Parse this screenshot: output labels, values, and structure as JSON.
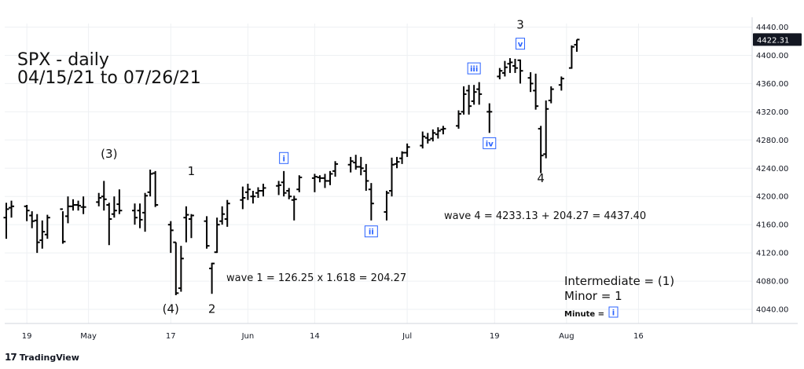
{
  "chart_data": {
    "type": "ohlc",
    "title": "SPX - daily",
    "subtitle": "04/15/21 to 07/26/21",
    "ylim": [
      4020,
      4445
    ],
    "yticks": [
      4040,
      4080,
      4120,
      4160,
      4200,
      4240,
      4280,
      4320,
      4360,
      4400,
      4440
    ],
    "ytick_labels": [
      "4040.00",
      "4080.00",
      "4120.00",
      "4160.00",
      "4200.00",
      "4240.00",
      "4280.00",
      "4320.00",
      "4360.00",
      "4400.00",
      "4440.00"
    ],
    "last_price": "4422.31",
    "xtick_labels": [
      "19",
      "May",
      "17",
      "Jun",
      "14",
      "Jul",
      "19",
      "Aug",
      "16"
    ],
    "xtick_days": [
      4,
      16,
      32,
      47,
      60,
      78,
      95,
      109,
      123
    ],
    "grid": true,
    "bars": [
      {
        "d": 0,
        "o": 4170,
        "h": 4191,
        "l": 4140,
        "c": 4182
      },
      {
        "d": 1,
        "o": 4184,
        "h": 4194,
        "l": 4170,
        "c": 4186
      },
      {
        "d": 4,
        "o": 4186,
        "h": 4188,
        "l": 4165,
        "c": 4180
      },
      {
        "d": 5,
        "o": 4173,
        "h": 4179,
        "l": 4155,
        "c": 4165
      },
      {
        "d": 6,
        "o": 4166,
        "h": 4175,
        "l": 4120,
        "c": 4135
      },
      {
        "d": 7,
        "o": 4138,
        "h": 4166,
        "l": 4126,
        "c": 4150
      },
      {
        "d": 8,
        "o": 4146,
        "h": 4174,
        "l": 4140,
        "c": 4170
      },
      {
        "d": 11,
        "o": 4182,
        "h": 4179,
        "l": 4133,
        "c": 4136
      },
      {
        "d": 12,
        "o": 4172,
        "h": 4200,
        "l": 4162,
        "c": 4186
      },
      {
        "d": 13,
        "o": 4186,
        "h": 4196,
        "l": 4180,
        "c": 4188
      },
      {
        "d": 14,
        "o": 4188,
        "h": 4194,
        "l": 4180,
        "c": 4187
      },
      {
        "d": 15,
        "o": 4185,
        "h": 4200,
        "l": 4175,
        "c": 4185
      },
      {
        "d": 18,
        "o": 4192,
        "h": 4205,
        "l": 4186,
        "c": 4198
      },
      {
        "d": 19,
        "o": 4200,
        "h": 4222,
        "l": 4180,
        "c": 4196
      },
      {
        "d": 20,
        "o": 4188,
        "h": 4191,
        "l": 4131,
        "c": 4168
      },
      {
        "d": 21,
        "o": 4175,
        "h": 4200,
        "l": 4170,
        "c": 4180
      },
      {
        "d": 22,
        "o": 4189,
        "h": 4210,
        "l": 4175,
        "c": 4180
      },
      {
        "d": 25,
        "o": 4180,
        "h": 4190,
        "l": 4160,
        "c": 4170
      },
      {
        "d": 26,
        "o": 4180,
        "h": 4190,
        "l": 4155,
        "c": 4167
      },
      {
        "d": 27,
        "o": 4177,
        "h": 4205,
        "l": 4150,
        "c": 4201
      },
      {
        "d": 28,
        "o": 4206,
        "h": 4238,
        "l": 4200,
        "c": 4232
      },
      {
        "d": 29,
        "o": 4233,
        "h": 4236,
        "l": 4185,
        "c": 4188
      },
      {
        "d": 32,
        "o": 4160,
        "h": 4165,
        "l": 4120,
        "c": 4152
      },
      {
        "d": 33,
        "o": 4135,
        "h": 4135,
        "l": 4060,
        "c": 4063
      },
      {
        "d": 34,
        "o": 4070,
        "h": 4130,
        "l": 4065,
        "c": 4112
      },
      {
        "d": 35,
        "o": 4170,
        "h": 4186,
        "l": 4135,
        "c": 4174
      },
      {
        "d": 36,
        "o": 4168,
        "h": 4175,
        "l": 4141,
        "c": 4173
      },
      {
        "d": 39,
        "o": 4165,
        "h": 4172,
        "l": 4126,
        "c": 4130
      },
      {
        "d": 40,
        "o": 4098,
        "h": 4106,
        "l": 4062,
        "c": 4105
      },
      {
        "d": 41,
        "o": 4121,
        "h": 4170,
        "l": 4120,
        "c": 4160
      },
      {
        "d": 42,
        "o": 4165,
        "h": 4186,
        "l": 4160,
        "c": 4175
      },
      {
        "d": 43,
        "o": 4168,
        "h": 4195,
        "l": 4157,
        "c": 4190
      },
      {
        "d": 46,
        "o": 4195,
        "h": 4214,
        "l": 4182,
        "c": 4198
      },
      {
        "d": 47,
        "o": 4206,
        "h": 4218,
        "l": 4195,
        "c": 4210
      },
      {
        "d": 48,
        "o": 4200,
        "h": 4208,
        "l": 4190,
        "c": 4200
      },
      {
        "d": 49,
        "o": 4205,
        "h": 4213,
        "l": 4198,
        "c": 4208
      },
      {
        "d": 50,
        "o": 4208,
        "h": 4218,
        "l": 4200,
        "c": 4212
      },
      {
        "d": 53,
        "o": 4215,
        "h": 4222,
        "l": 4202,
        "c": 4216
      },
      {
        "d": 54,
        "o": 4220,
        "h": 4236,
        "l": 4200,
        "c": 4205
      },
      {
        "d": 55,
        "o": 4208,
        "h": 4212,
        "l": 4196,
        "c": 4200
      },
      {
        "d": 56,
        "o": 4195,
        "h": 4201,
        "l": 4166,
        "c": 4196
      },
      {
        "d": 57,
        "o": 4210,
        "h": 4230,
        "l": 4206,
        "c": 4227
      },
      {
        "d": 60,
        "o": 4226,
        "h": 4232,
        "l": 4206,
        "c": 4228
      },
      {
        "d": 61,
        "o": 4227,
        "h": 4230,
        "l": 4220,
        "c": 4226
      },
      {
        "d": 62,
        "o": 4226,
        "h": 4232,
        "l": 4212,
        "c": 4222
      },
      {
        "d": 63,
        "o": 4222,
        "h": 4236,
        "l": 4216,
        "c": 4232
      },
      {
        "d": 64,
        "o": 4236,
        "h": 4250,
        "l": 4228,
        "c": 4246
      },
      {
        "d": 67,
        "o": 4245,
        "h": 4256,
        "l": 4234,
        "c": 4250
      },
      {
        "d": 68,
        "o": 4248,
        "h": 4259,
        "l": 4238,
        "c": 4242
      },
      {
        "d": 69,
        "o": 4242,
        "h": 4256,
        "l": 4230,
        "c": 4240
      },
      {
        "d": 70,
        "o": 4236,
        "h": 4246,
        "l": 4208,
        "c": 4222
      },
      {
        "d": 71,
        "o": 4210,
        "h": 4219,
        "l": 4166,
        "c": 4190
      },
      {
        "d": 74,
        "o": 4178,
        "h": 4208,
        "l": 4166,
        "c": 4205
      },
      {
        "d": 75,
        "o": 4208,
        "h": 4255,
        "l": 4200,
        "c": 4245
      },
      {
        "d": 76,
        "o": 4246,
        "h": 4256,
        "l": 4240,
        "c": 4249
      },
      {
        "d": 77,
        "o": 4254,
        "h": 4264,
        "l": 4246,
        "c": 4262
      },
      {
        "d": 78,
        "o": 4262,
        "h": 4275,
        "l": 4256,
        "c": 4270
      },
      {
        "d": 81,
        "o": 4272,
        "h": 4292,
        "l": 4268,
        "c": 4285
      },
      {
        "d": 82,
        "o": 4283,
        "h": 4290,
        "l": 4275,
        "c": 4280
      },
      {
        "d": 83,
        "o": 4282,
        "h": 4295,
        "l": 4278,
        "c": 4290
      },
      {
        "d": 84,
        "o": 4288,
        "h": 4298,
        "l": 4282,
        "c": 4293
      },
      {
        "d": 85,
        "o": 4295,
        "h": 4300,
        "l": 4288,
        "c": 4296
      },
      {
        "d": 88,
        "o": 4300,
        "h": 4322,
        "l": 4296,
        "c": 4317
      },
      {
        "d": 89,
        "o": 4320,
        "h": 4356,
        "l": 4316,
        "c": 4345
      },
      {
        "d": 90,
        "o": 4350,
        "h": 4358,
        "l": 4316,
        "c": 4328
      },
      {
        "d": 91,
        "o": 4335,
        "h": 4358,
        "l": 4330,
        "c": 4348
      },
      {
        "d": 92,
        "o": 4352,
        "h": 4362,
        "l": 4330,
        "c": 4345
      },
      {
        "d": 94,
        "o": 4320,
        "h": 4332,
        "l": 4290,
        "c": 4320
      },
      {
        "d": 96,
        "o": 4370,
        "h": 4382,
        "l": 4366,
        "c": 4378
      },
      {
        "d": 97,
        "o": 4375,
        "h": 4392,
        "l": 4370,
        "c": 4383
      },
      {
        "d": 98,
        "o": 4388,
        "h": 4396,
        "l": 4375,
        "c": 4390
      },
      {
        "d": 99,
        "o": 4385,
        "h": 4395,
        "l": 4375,
        "c": 4382
      },
      {
        "d": 100,
        "o": 4393,
        "h": 4394,
        "l": 4360,
        "c": 4378
      },
      {
        "d": 102,
        "o": 4368,
        "h": 4376,
        "l": 4348,
        "c": 4360
      },
      {
        "d": 103,
        "o": 4350,
        "h": 4374,
        "l": 4323,
        "c": 4328
      },
      {
        "d": 104,
        "o": 4296,
        "h": 4300,
        "l": 4233,
        "c": 4258
      },
      {
        "d": 105,
        "o": 4260,
        "h": 4336,
        "l": 4254,
        "c": 4324
      },
      {
        "d": 106,
        "o": 4336,
        "h": 4356,
        "l": 4332,
        "c": 4352
      },
      {
        "d": 108,
        "o": 4358,
        "h": 4370,
        "l": 4350,
        "c": 4367
      },
      {
        "d": 110,
        "o": 4382,
        "h": 4414,
        "l": 4381,
        "c": 4412
      },
      {
        "d": 111,
        "o": 4415,
        "h": 4422.3,
        "l": 4405,
        "c": 4422.31
      }
    ],
    "annotations": {
      "intermediate": [
        {
          "label": "(3)",
          "d": 20,
          "p": 4255
        },
        {
          "label": "(4)",
          "d": 32,
          "p": 4035
        }
      ],
      "minor": [
        {
          "label": "1",
          "d": 36,
          "p": 4230
        },
        {
          "label": "2",
          "d": 40,
          "p": 4035
        },
        {
          "label": "3",
          "d": 100,
          "p": 4438
        },
        {
          "label": "4",
          "d": 104,
          "p": 4220
        }
      ],
      "minute": [
        {
          "label": "i",
          "d": 54,
          "p": 4250
        },
        {
          "label": "ii",
          "d": 71,
          "p": 4146
        },
        {
          "label": "iii",
          "d": 91,
          "p": 4377
        },
        {
          "label": "iv",
          "d": 94,
          "p": 4271
        },
        {
          "label": "v",
          "d": 100,
          "p": 4412
        }
      ]
    },
    "notes": {
      "wave1": "wave 1 = 126.25 x 1.618 = 204.27",
      "wave4": "wave 4 = 4233.13 + 204.27 = 4437.40"
    },
    "legend": {
      "intermediate": "Intermediate = (1)",
      "minor": "Minor = 1",
      "minute_prefix": "Minute  =",
      "minute_box": "i"
    }
  },
  "branding": {
    "logo_mark": "17",
    "logo_text": "TradingView"
  }
}
